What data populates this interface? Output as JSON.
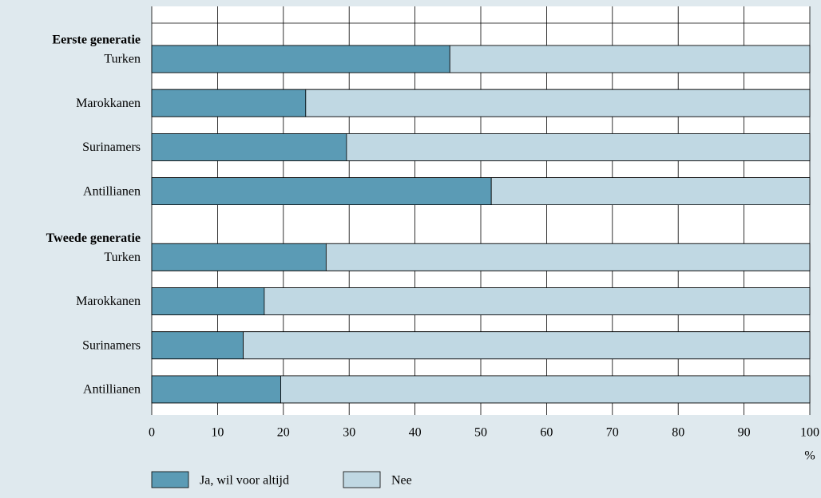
{
  "chart_data": {
    "type": "stacked-barh",
    "groups": [
      {
        "label": "Eerste generatie",
        "categories": [
          "Turken",
          "Marokkanen",
          "Surinamers",
          "Antillianen"
        ]
      },
      {
        "label": "Tweede generatie",
        "categories": [
          "Turken",
          "Marokkanen",
          "Surinamers",
          "Antillianen"
        ]
      }
    ],
    "series": [
      {
        "name": "Ja, wil voor altijd",
        "color": "#5b9bb5",
        "values": [
          45.3,
          23.4,
          29.6,
          51.6,
          26.5,
          17.1,
          13.9,
          19.6
        ]
      },
      {
        "name": "Nee",
        "color": "#c0d8e3",
        "values": [
          54.7,
          76.6,
          70.4,
          48.4,
          73.5,
          82.9,
          86.1,
          80.4
        ]
      }
    ],
    "x_label": "%",
    "xlim": [
      0,
      100
    ],
    "xticks": [
      0,
      10,
      20,
      30,
      40,
      50,
      60,
      70,
      80,
      90,
      100
    ],
    "grid": true,
    "legend": "bottom"
  }
}
